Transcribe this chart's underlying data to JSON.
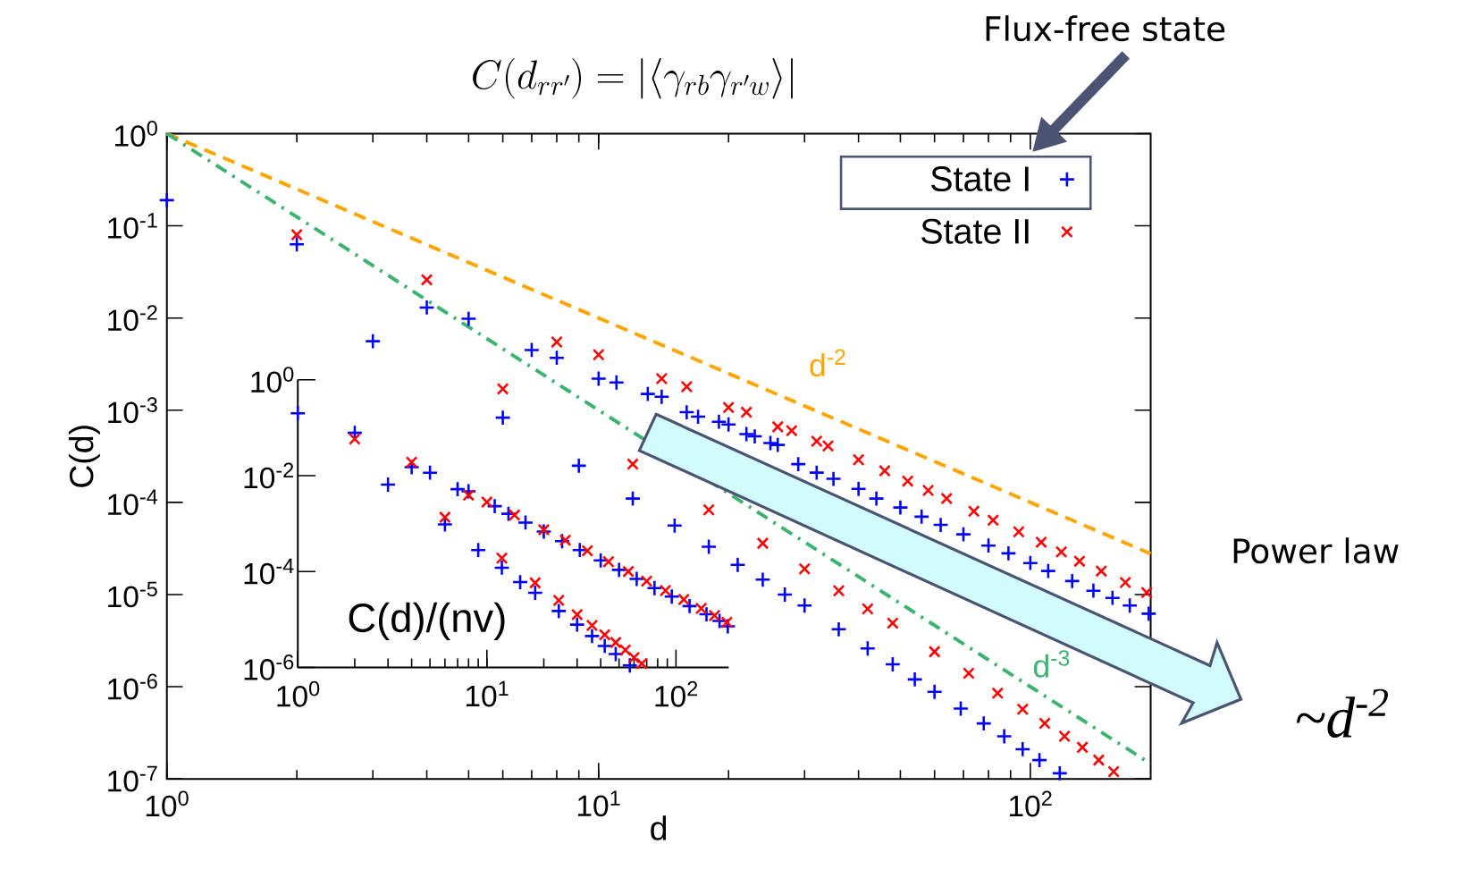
{
  "chart_data": [
    {
      "type": "scatter",
      "title": "C(d_{rr'}) = |\\langle\\gamma_{rb}\\gamma_{r'w}\\rangle|",
      "xlabel": "d",
      "ylabel": "C(d)",
      "log": "xy",
      "xlim": [
        1,
        190
      ],
      "ylim": [
        1e-07,
        1
      ],
      "xticks": [
        {
          "value": 1,
          "label": "10$^{0}$"
        },
        {
          "value": 10,
          "label": "10$^{1}$"
        },
        {
          "value": 100,
          "label": "10$^{2}$"
        }
      ],
      "yticks": [
        {
          "value": 1,
          "label": "10$^{0}$"
        },
        {
          "value": 0.1,
          "label": "10$^{-1}$"
        },
        {
          "value": 0.01,
          "label": "10$^{-2}$"
        },
        {
          "value": 0.001,
          "label": "10$^{-3}$"
        },
        {
          "value": 0.0001,
          "label": "10$^{-4}$"
        },
        {
          "value": 1e-05,
          "label": "10$^{-5}$"
        },
        {
          "value": 1e-06,
          "label": "10$^{-6}$"
        },
        {
          "value": 1e-07,
          "label": "10$^{-7}$"
        }
      ],
      "legend": "top right",
      "series": [
        {
          "name": "State I",
          "color": "#0000ff",
          "marker": "plus",
          "x": [
            1,
            2,
            4,
            5,
            7,
            8,
            10,
            11,
            13,
            14,
            16,
            17,
            19,
            20,
            22,
            23,
            25,
            26,
            29,
            32,
            35,
            40,
            44,
            50,
            56,
            62,
            70,
            80,
            89,
            100,
            110,
            125,
            140,
            155,
            170,
            188,
            3,
            6,
            9,
            12,
            15,
            18,
            21,
            24,
            27,
            30,
            36,
            42,
            48,
            54,
            60,
            69,
            78,
            87,
            96,
            105,
            117
          ],
          "values": [
            0.19,
            0.063,
            0.013,
            0.0098,
            0.0045,
            0.0037,
            0.0022,
            0.002,
            0.0015,
            0.0014,
            0.00095,
            0.00085,
            0.00075,
            0.0007,
            0.00055,
            0.00052,
            0.00044,
            0.00042,
            0.00026,
            0.00021,
            0.00018,
            0.00014,
            0.00011,
            8.8e-05,
            7e-05,
            5.7e-05,
            4.5e-05,
            3.4e-05,
            2.8e-05,
            2.2e-05,
            1.8e-05,
            1.4e-05,
            1.1e-05,
            9.2e-06,
            7.6e-06,
            6.2e-06,
            0.0056,
            0.00083,
            0.00025,
            0.00011,
            5.6e-05,
            3.3e-05,
            2.1e-05,
            1.45e-05,
            1e-05,
            7.6e-06,
            4.2e-06,
            2.6e-06,
            1.75e-06,
            1.2e-06,
            8.8e-07,
            5.8e-07,
            4e-07,
            2.9e-07,
            2.1e-07,
            1.6e-07,
            1.15e-07
          ]
        },
        {
          "name": "State II",
          "color": "#ff0000",
          "marker": "cross",
          "x": [
            2,
            4,
            8,
            10,
            14,
            16,
            20,
            22,
            26,
            28,
            32,
            34,
            40,
            46,
            52,
            58,
            64,
            74,
            82,
            94,
            106,
            118,
            130,
            146,
            166,
            186,
            6,
            12,
            18,
            24,
            30,
            36,
            42,
            48,
            60,
            72,
            84,
            96,
            108,
            120,
            132,
            144,
            156
          ],
          "values": [
            0.08,
            0.026,
            0.0055,
            0.004,
            0.0022,
            0.0018,
            0.00107,
            0.00095,
            0.00066,
            0.0006,
            0.00046,
            0.00041,
            0.00029,
            0.00022,
            0.00017,
            0.000135,
            0.00011,
            8e-05,
            6.4e-05,
            4.8e-05,
            3.7e-05,
            2.9e-05,
            2.3e-05,
            1.8e-05,
            1.35e-05,
            1.05e-05,
            0.0017,
            0.00026,
            8.3e-05,
            3.6e-05,
            1.9e-05,
            1.1e-05,
            7e-06,
            4.9e-06,
            2.4e-06,
            1.4e-06,
            8.5e-07,
            5.7e-07,
            4e-07,
            2.9e-07,
            2.2e-07,
            1.6e-07,
            1.2e-07
          ]
        },
        {
          "type": "line",
          "color": "#ffa500",
          "line_style": "dashed",
          "x": [
            1,
            190
          ],
          "values": [
            1,
            2.77e-05
          ]
        },
        {
          "type": "line",
          "color": "#3cb371",
          "line_style": "dashdot",
          "x": [
            1,
            190
          ],
          "values": [
            1,
            1.46e-07
          ]
        }
      ],
      "annotations": [
        "Flux-free state",
        "Power law",
        "~d$^{-2}$",
        "d$^{-2}$",
        "d$^{-3}$"
      ]
    },
    {
      "type": "scatter",
      "ylabel": "C(d)/(nv)",
      "log": "xy",
      "xlim": [
        1,
        190
      ],
      "ylim": [
        1e-06,
        1
      ],
      "xticks": [
        {
          "value": 1,
          "label": "10$^{0}$"
        },
        {
          "value": 10,
          "label": "10$^{1}$"
        },
        {
          "value": 100,
          "label": "10$^{2}$"
        }
      ],
      "yticks": [
        {
          "value": 1,
          "label": "10$^{0}$"
        },
        {
          "value": 0.01,
          "label": "10$^{-2}$"
        },
        {
          "value": 0.0001,
          "label": "10$^{-4}$"
        },
        {
          "value": 1e-06,
          "label": "10$^{-6}$"
        }
      ],
      "series": [
        {
          "color": "#0000ff",
          "marker": "plus",
          "x": [
            1,
            2,
            4,
            5,
            7,
            8,
            11,
            13,
            16,
            20,
            25,
            31,
            40,
            50,
            62,
            77,
            95,
            118,
            145,
            170,
            188,
            3,
            6,
            9,
            12,
            15,
            18,
            24,
            30,
            36,
            42,
            48,
            57
          ],
          "values": [
            0.2,
            0.078,
            0.015,
            0.0115,
            0.0052,
            0.0047,
            0.0023,
            0.0016,
            0.00105,
            0.00068,
            0.00043,
            0.00028,
            0.00017,
            0.000108,
            7e-05,
            4.5e-05,
            3e-05,
            1.9e-05,
            1.28e-05,
            9.3e-06,
            7.2e-06,
            0.0065,
            0.00096,
            0.00028,
            0.00012,
            6e-05,
            3.6e-05,
            1.5e-05,
            7.8e-06,
            4.5e-06,
            2.8e-06,
            1.9e-06,
            1.1e-06
          ]
        },
        {
          "color": "#ff0000",
          "marker": "cross",
          "x": [
            2,
            4,
            8,
            10,
            14,
            20,
            26,
            34,
            44,
            56,
            70,
            88,
            110,
            136,
            160,
            186,
            6,
            12,
            18,
            24,
            30,
            36,
            42,
            48,
            54,
            60,
            66
          ],
          "values": [
            0.058,
            0.019,
            0.0039,
            0.0028,
            0.0015,
            0.00074,
            0.00045,
            0.00027,
            0.00016,
            0.0001,
            6.3e-05,
            4e-05,
            2.6e-05,
            1.7e-05,
            1.2e-05,
            8.7e-06,
            0.00135,
            0.00019,
            5.8e-05,
            2.5e-05,
            1.26e-05,
            7.5e-06,
            4.8e-06,
            3.3e-06,
            2.3e-06,
            1.6e-06,
            1.2e-06
          ]
        }
      ]
    }
  ]
}
